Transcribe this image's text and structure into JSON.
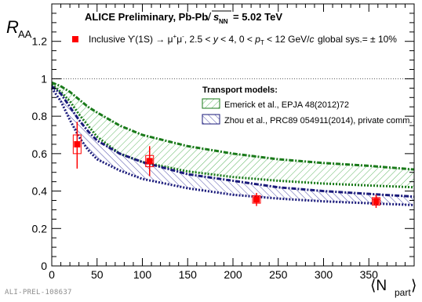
{
  "chart_data": {
    "type": "scatter",
    "title": "ALICE Preliminary, Pb-Pb",
    "energy_text": "= 5.02 TeV",
    "ylabel": "R",
    "ylabel_sub": "AA",
    "xlabel": "⟨N",
    "xlabel_sub": "part",
    "xlabel_close": "⟩",
    "xlim": [
      0,
      400
    ],
    "ylim": [
      0,
      1.4
    ],
    "x_ticks": [
      0,
      50,
      100,
      150,
      200,
      250,
      300,
      350
    ],
    "y_ticks": [
      0,
      0.2,
      0.4,
      0.6,
      0.8,
      1,
      1.2
    ],
    "reference_line": 1,
    "series": [
      {
        "name": "Inclusive ϒ(1S) → μ⁺μ⁻, 2.5 < y < 4, 0 < p_T < 12 GeV/c",
        "color": "#ff0000",
        "points": [
          {
            "x": 28,
            "y": 0.65,
            "stat_lo": 0.52,
            "stat_hi": 0.77,
            "sys": 0.05
          },
          {
            "x": 108,
            "y": 0.56,
            "stat_lo": 0.48,
            "stat_hi": 0.64,
            "sys": 0.03
          },
          {
            "x": 226,
            "y": 0.355,
            "stat_lo": 0.32,
            "stat_hi": 0.39,
            "sys": 0.02
          },
          {
            "x": 358,
            "y": 0.345,
            "stat_lo": 0.31,
            "stat_hi": 0.38,
            "sys": 0.02
          }
        ]
      }
    ],
    "global_sys": "global sys.= ± 10%",
    "legend_title": "Transport models:",
    "models": [
      {
        "name": "Emerick et al., EPJA 48(2012)72",
        "color": "#1a7a1a",
        "upper": [
          [
            0,
            0.98
          ],
          [
            10,
            0.96
          ],
          [
            20,
            0.93
          ],
          [
            30,
            0.89
          ],
          [
            40,
            0.85
          ],
          [
            50,
            0.82
          ],
          [
            75,
            0.75
          ],
          [
            100,
            0.7
          ],
          [
            150,
            0.64
          ],
          [
            200,
            0.6
          ],
          [
            250,
            0.57
          ],
          [
            300,
            0.55
          ],
          [
            350,
            0.535
          ],
          [
            400,
            0.515
          ]
        ],
        "lower": [
          [
            0,
            0.97
          ],
          [
            10,
            0.93
          ],
          [
            20,
            0.88
          ],
          [
            30,
            0.81
          ],
          [
            40,
            0.75
          ],
          [
            50,
            0.69
          ],
          [
            75,
            0.6
          ],
          [
            100,
            0.555
          ],
          [
            150,
            0.505
          ],
          [
            200,
            0.475
          ],
          [
            250,
            0.455
          ],
          [
            300,
            0.44
          ],
          [
            350,
            0.43
          ],
          [
            400,
            0.42
          ]
        ]
      },
      {
        "name": "Zhou et al., PRC89 054911(2014), private comm.",
        "color": "#1a1a7a",
        "upper": [
          [
            0,
            0.96
          ],
          [
            10,
            0.92
          ],
          [
            20,
            0.85
          ],
          [
            30,
            0.78
          ],
          [
            40,
            0.72
          ],
          [
            50,
            0.67
          ],
          [
            75,
            0.6
          ],
          [
            100,
            0.555
          ],
          [
            150,
            0.49
          ],
          [
            200,
            0.455
          ],
          [
            250,
            0.42
          ],
          [
            300,
            0.4
          ],
          [
            350,
            0.385
          ],
          [
            400,
            0.37
          ]
        ],
        "lower": [
          [
            0,
            0.95
          ],
          [
            10,
            0.88
          ],
          [
            20,
            0.78
          ],
          [
            30,
            0.69
          ],
          [
            40,
            0.62
          ],
          [
            50,
            0.57
          ],
          [
            75,
            0.51
          ],
          [
            100,
            0.465
          ],
          [
            150,
            0.415
          ],
          [
            200,
            0.38
          ],
          [
            250,
            0.36
          ],
          [
            300,
            0.345
          ],
          [
            350,
            0.335
          ],
          [
            400,
            0.325
          ]
        ]
      }
    ]
  },
  "watermark": "ALI-PREL-108637"
}
